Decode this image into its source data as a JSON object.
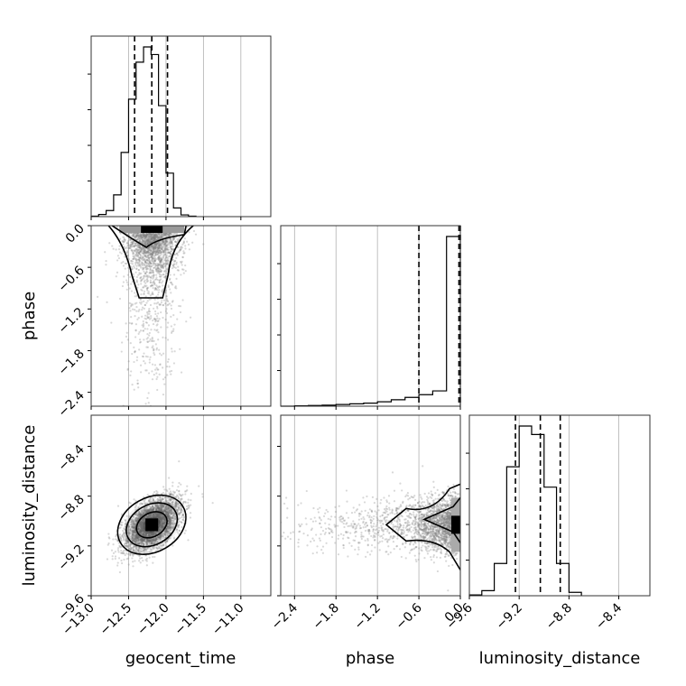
{
  "chart_data": {
    "type": "corner",
    "parameters": [
      "geocent_time",
      "phase",
      "luminosity_distance"
    ],
    "axis_labels": {
      "geocent_time": "geocent_time",
      "phase": "phase",
      "luminosity_distance": "luminosity_distance"
    },
    "ranges": {
      "geocent_time": [
        -13.0,
        -10.6
      ],
      "phase": [
        -2.6,
        0.0
      ],
      "luminosity_distance": [
        -9.6,
        -8.15
      ]
    },
    "ticks": {
      "geocent_time": [
        -13.0,
        -12.5,
        -12.0,
        -11.5,
        -11.0
      ],
      "phase": [
        -2.4,
        -1.8,
        -1.2,
        -0.6,
        0.0
      ],
      "luminosity_distance": [
        -9.6,
        -9.2,
        -8.8,
        -8.4
      ]
    },
    "tick_labels": {
      "geocent_time": [
        "−13.0",
        "−12.5",
        "−12.0",
        "−11.5",
        "−11.0"
      ],
      "phase": [
        "−2.4",
        "−1.8",
        "−1.2",
        "−0.6",
        "0.0"
      ],
      "luminosity_distance": [
        "−9.6",
        "−9.2",
        "−8.8",
        "−8.4"
      ]
    },
    "quantiles": {
      "geocent_time": [
        -12.42,
        -12.19,
        -11.98
      ],
      "phase": [
        -0.6,
        -0.02,
        0.0
      ],
      "luminosity_distance": [
        -9.23,
        -9.03,
        -8.87
      ]
    },
    "histograms": {
      "geocent_time": {
        "edges": [
          -13.0,
          -12.9,
          -12.8,
          -12.7,
          -12.6,
          -12.5,
          -12.4,
          -12.3,
          -12.2,
          -12.1,
          -12.0,
          -11.9,
          -11.8,
          -11.7,
          -11.6
        ],
        "counts": [
          2,
          10,
          28,
          100,
          295,
          540,
          710,
          780,
          745,
          510,
          200,
          40,
          8,
          2
        ]
      },
      "phase": {
        "edges": [
          -2.6,
          -2.4,
          -2.2,
          -2.0,
          -1.8,
          -1.6,
          -1.4,
          -1.2,
          -1.0,
          -0.8,
          -0.6,
          -0.4,
          -0.2,
          0.0
        ],
        "counts": [
          0,
          2,
          4,
          6,
          10,
          14,
          18,
          26,
          38,
          52,
          68,
          90,
          1000
        ]
      },
      "luminosity_distance": {
        "edges": [
          -9.6,
          -9.5,
          -9.4,
          -9.3,
          -9.2,
          -9.1,
          -9.0,
          -8.9,
          -8.8,
          -8.7
        ],
        "counts": [
          5,
          30,
          190,
          760,
          1000,
          950,
          640,
          190,
          20
        ]
      }
    },
    "scatter_centers": {
      "geocent_time_phase": {
        "x": -12.19,
        "y": 0.0
      },
      "geocent_time_luminosity_distance": {
        "x": -12.19,
        "y": -9.03
      },
      "phase_luminosity_distance": {
        "x": -0.02,
        "y": -9.03
      }
    },
    "grid": true,
    "colors": {
      "line": "#000000",
      "points": "#7f7f7f",
      "grid": "#b0b0b0"
    }
  }
}
